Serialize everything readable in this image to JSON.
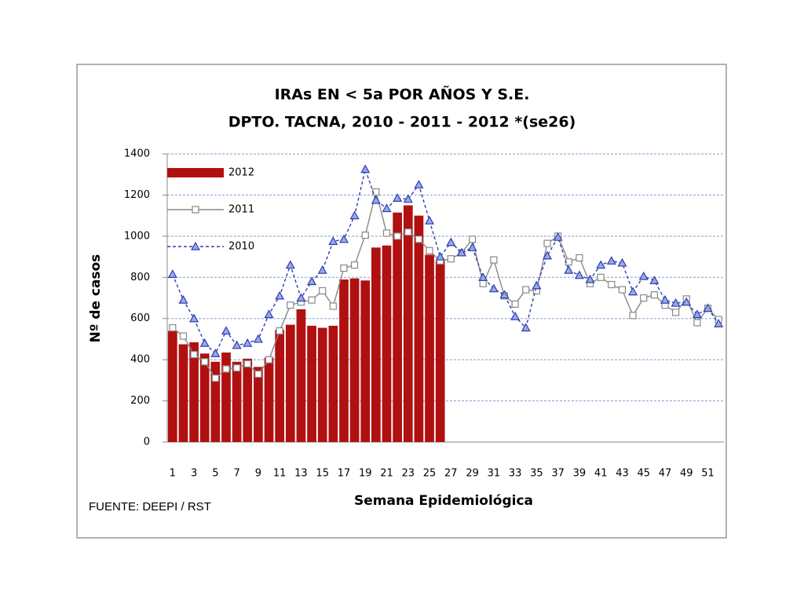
{
  "chart_data": {
    "type": "bar",
    "title": "IRAs  EN < 5a POR AÑOS Y S.E.",
    "subtitle": "DPTO. TACNA, 2010 - 2011 -  2012 *(se26)",
    "y_label": "Nº de casos",
    "x_label": "Semana Epidemiológica",
    "annotation": "FUENTE: DEEPI / RST",
    "categories": [
      "1",
      null,
      "3",
      null,
      "5",
      null,
      "7",
      null,
      "9",
      null,
      "11",
      null,
      "13",
      null,
      "15",
      null,
      "17",
      null,
      "19",
      null,
      "21",
      null,
      "23",
      null,
      "25",
      null,
      "27",
      null,
      "29",
      null,
      "31",
      null,
      "33",
      null,
      "35",
      null,
      "37",
      null,
      "39",
      null,
      "41",
      null,
      "43",
      null,
      "45",
      null,
      "47",
      null,
      "49",
      null,
      "51",
      null
    ],
    "ylim": [
      0,
      1400
    ],
    "yticks": [
      0,
      200,
      400,
      600,
      800,
      1000,
      1200,
      1400
    ],
    "grid": true,
    "legend": "top-left",
    "series": [
      {
        "name": "2012",
        "type": "bar",
        "color": "#b01010",
        "values": [
          540,
          475,
          485,
          430,
          390,
          435,
          390,
          405,
          365,
          410,
          545,
          570,
          645,
          565,
          555,
          565,
          790,
          795,
          785,
          945,
          955,
          1115,
          1150,
          1100,
          910,
          880,
          null,
          null,
          null,
          null,
          null,
          null,
          null,
          null,
          null,
          null,
          null,
          null,
          null,
          null,
          null,
          null,
          null,
          null,
          null,
          null,
          null,
          null,
          null,
          null,
          null,
          null
        ]
      },
      {
        "name": "2011",
        "type": "line",
        "color": "#888888",
        "marker": "square",
        "dash": false,
        "values": [
          555,
          515,
          425,
          390,
          310,
          355,
          360,
          380,
          330,
          400,
          540,
          665,
          680,
          690,
          735,
          660,
          845,
          860,
          1005,
          1215,
          1015,
          1000,
          1020,
          985,
          930,
          880,
          890,
          920,
          985,
          770,
          885,
          710,
          670,
          740,
          735,
          965,
          1000,
          875,
          895,
          770,
          800,
          765,
          740,
          615,
          700,
          715,
          665,
          630,
          695,
          580,
          650,
          595
        ]
      },
      {
        "name": "2010",
        "type": "line",
        "color": "#2e3fb0",
        "marker": "triangle",
        "dash": true,
        "values": [
          815,
          690,
          600,
          480,
          430,
          540,
          470,
          480,
          500,
          620,
          710,
          860,
          700,
          780,
          835,
          975,
          985,
          1100,
          1325,
          1175,
          1135,
          1185,
          1180,
          1250,
          1075,
          900,
          970,
          920,
          945,
          800,
          745,
          715,
          610,
          555,
          760,
          905,
          995,
          835,
          810,
          790,
          860,
          880,
          870,
          730,
          805,
          785,
          690,
          675,
          680,
          620,
          650,
          575
        ]
      }
    ]
  }
}
